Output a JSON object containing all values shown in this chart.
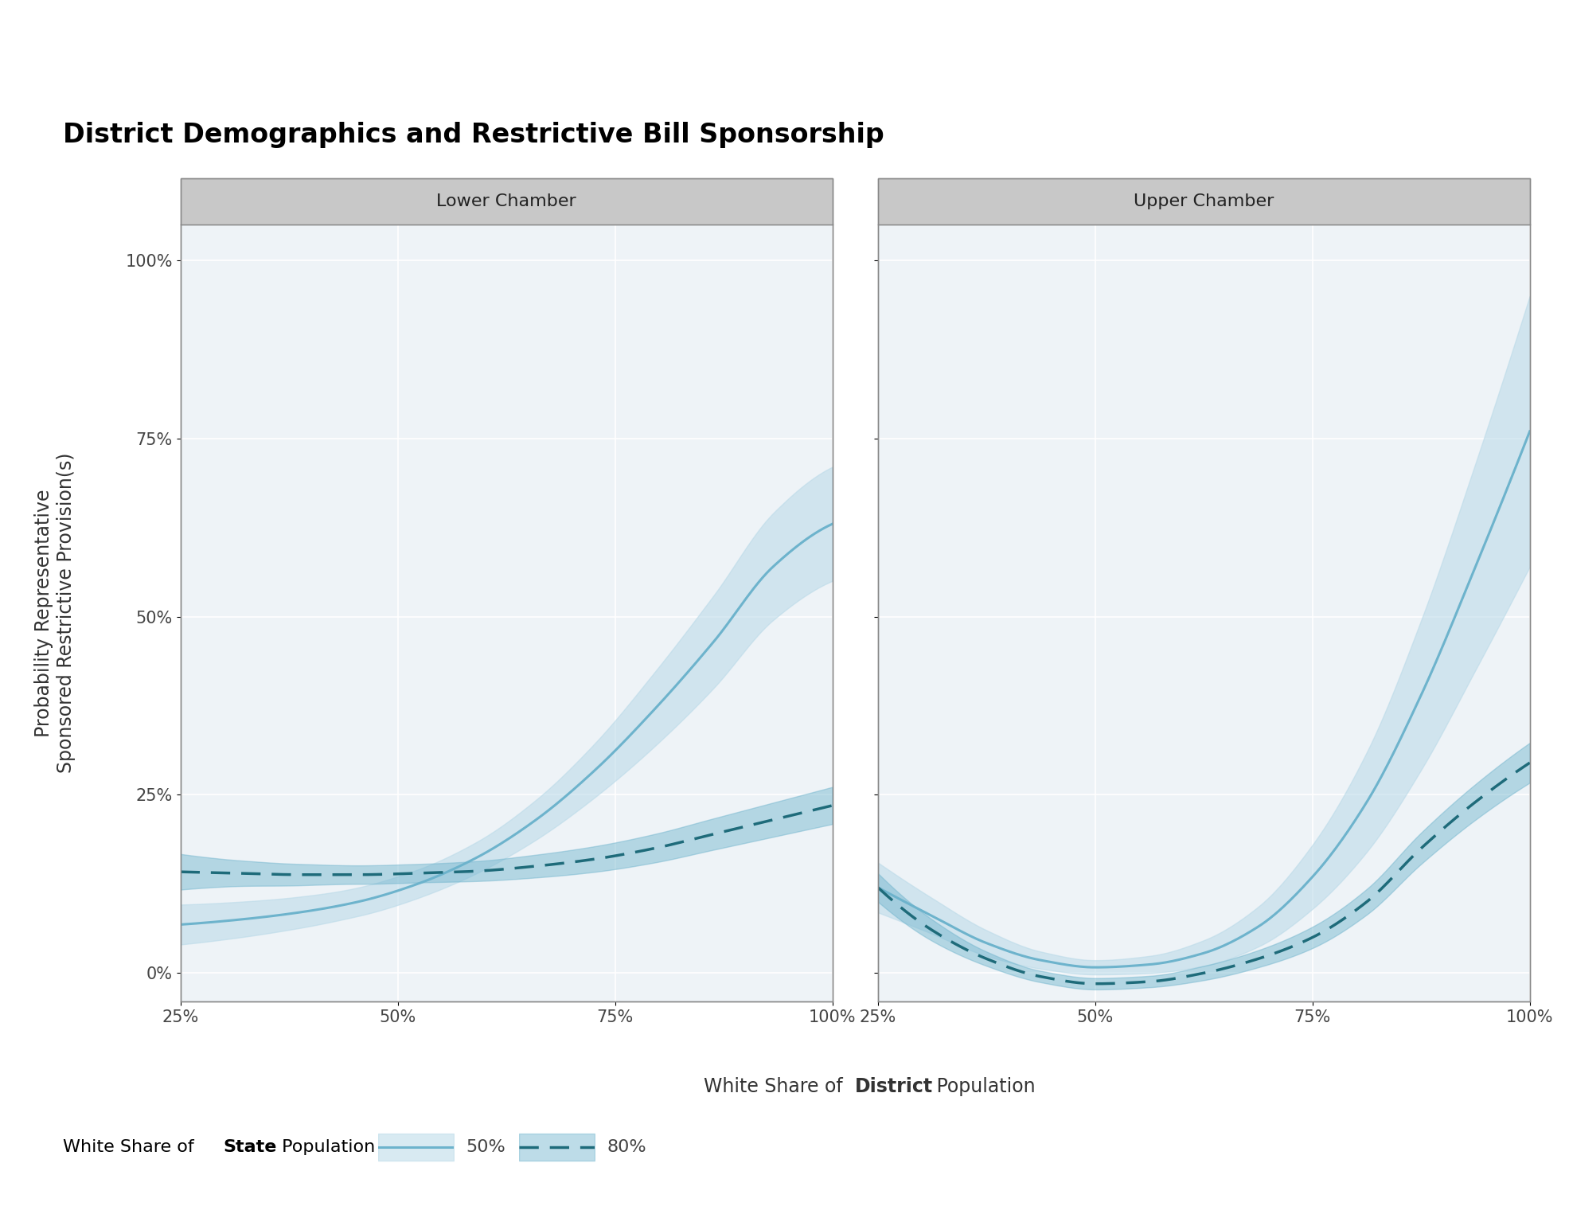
{
  "title": "District Demographics and Restrictive Bill Sponsorship",
  "ylabel_line1": "Probability Representative",
  "ylabel_line2": "Sponsored Restrictive Provision(s)",
  "panel_labels": [
    "Lower Chamber",
    "Upper Chamber"
  ],
  "legend_50_label": "50%",
  "legend_80_label": "80%",
  "xlim": [
    0.25,
    1.0
  ],
  "ylim": [
    -0.04,
    1.05
  ],
  "xticks": [
    0.25,
    0.5,
    0.75,
    1.0
  ],
  "yticks": [
    0.0,
    0.25,
    0.5,
    0.75,
    1.0
  ],
  "line_color_solid": "#6db3cc",
  "line_color_dashed": "#1e6b7a",
  "ci_color_solid": "#b8d9e8",
  "ci_color_dashed": "#6db3cc",
  "panel_header_color": "#c8c8c8",
  "panel_border_color": "#888888",
  "plot_bg_color": "#eef3f7",
  "grid_color": "#ffffff",
  "background_color": "#ffffff",
  "title_fontsize": 24,
  "axis_label_fontsize": 17,
  "tick_fontsize": 15,
  "panel_label_fontsize": 16,
  "legend_fontsize": 16,
  "lc_solid_y": [
    0.068,
    0.075,
    0.085,
    0.1,
    0.125,
    0.162,
    0.215,
    0.285,
    0.37,
    0.465,
    0.57,
    0.63
  ],
  "lc_solid_ci": [
    0.028,
    0.025,
    0.022,
    0.02,
    0.02,
    0.022,
    0.028,
    0.038,
    0.052,
    0.065,
    0.075,
    0.08
  ],
  "lc_dashed_y": [
    0.142,
    0.14,
    0.138,
    0.138,
    0.14,
    0.143,
    0.15,
    0.16,
    0.175,
    0.195,
    0.215,
    0.235
  ],
  "lc_dashed_ci": [
    0.025,
    0.018,
    0.015,
    0.013,
    0.013,
    0.014,
    0.016,
    0.018,
    0.02,
    0.022,
    0.024,
    0.026
  ],
  "uc_solid_y": [
    0.12,
    0.08,
    0.042,
    0.018,
    0.008,
    0.012,
    0.028,
    0.065,
    0.135,
    0.24,
    0.39,
    0.57,
    0.76
  ],
  "uc_solid_ci": [
    0.035,
    0.025,
    0.018,
    0.012,
    0.01,
    0.012,
    0.018,
    0.028,
    0.045,
    0.07,
    0.105,
    0.145,
    0.19
  ],
  "uc_dashed_y": [
    0.12,
    0.06,
    0.02,
    -0.005,
    -0.015,
    -0.012,
    0.0,
    0.02,
    0.05,
    0.1,
    0.175,
    0.24,
    0.295
  ],
  "uc_dashed_ci": [
    0.02,
    0.015,
    0.01,
    0.008,
    0.008,
    0.008,
    0.01,
    0.012,
    0.015,
    0.018,
    0.022,
    0.025,
    0.028
  ]
}
